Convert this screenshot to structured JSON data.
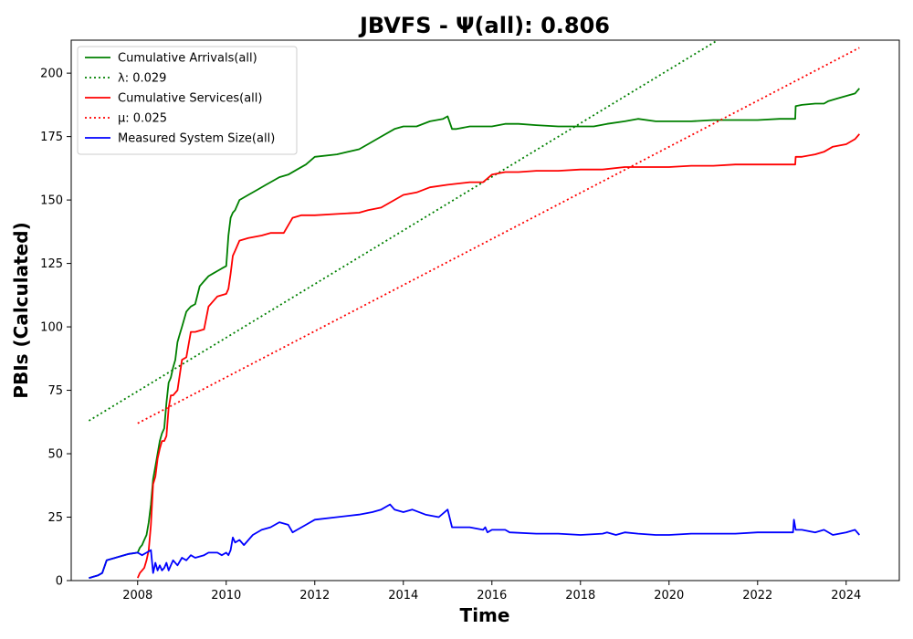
{
  "chart_data": {
    "type": "line",
    "title": "JBVFS -  Ψ(all): 0.806",
    "xlabel": "Time",
    "ylabel": "PBIs (Calculated)",
    "xlim": [
      2006.5,
      2025.2
    ],
    "ylim": [
      0,
      213
    ],
    "xticks": [
      2008,
      2010,
      2012,
      2014,
      2016,
      2018,
      2020,
      2022,
      2024
    ],
    "yticks": [
      0,
      25,
      50,
      75,
      100,
      125,
      150,
      175,
      200
    ],
    "grid": false,
    "legend_position": "top-left",
    "series": [
      {
        "name": "Cumulative Arrivals(all)",
        "color": "#008000",
        "style": "solid",
        "x": [
          2006.9,
          2007.0,
          2007.1,
          2007.2,
          2007.3,
          2007.5,
          2007.8,
          2008.0,
          2008.05,
          2008.1,
          2008.15,
          2008.2,
          2008.25,
          2008.3,
          2008.35,
          2008.4,
          2008.45,
          2008.5,
          2008.55,
          2008.6,
          2008.65,
          2008.7,
          2008.75,
          2008.8,
          2008.85,
          2008.9,
          2008.95,
          2009.0,
          2009.05,
          2009.1,
          2009.15,
          2009.2,
          2009.3,
          2009.4,
          2009.5,
          2009.6,
          2009.7,
          2009.8,
          2009.9,
          2010.0,
          2010.05,
          2010.1,
          2010.15,
          2010.2,
          2010.3,
          2010.5,
          2010.7,
          2010.9,
          2011.0,
          2011.2,
          2011.4,
          2011.6,
          2011.8,
          2012.0,
          2012.5,
          2013.0,
          2013.2,
          2013.5,
          2013.8,
          2014.0,
          2014.3,
          2014.6,
          2014.9,
          2015.0,
          2015.1,
          2015.2,
          2015.5,
          2015.8,
          2016.0,
          2016.3,
          2016.6,
          2017.0,
          2017.5,
          2018.0,
          2018.3,
          2018.6,
          2019.0,
          2019.3,
          2019.7,
          2020.0,
          2020.5,
          2021.0,
          2021.5,
          2022.0,
          2022.5,
          2022.85,
          2022.86,
          2023.0,
          2023.3,
          2023.5,
          2023.6,
          2023.8,
          2024.0,
          2024.2,
          2024.3
        ],
        "values": [
          1,
          1.5,
          2,
          3,
          8,
          9,
          10.5,
          11,
          13,
          14,
          16,
          18,
          23,
          30,
          40,
          45,
          50,
          55,
          58,
          60,
          70,
          78,
          80,
          84,
          87,
          94,
          97,
          100,
          103,
          106,
          107,
          108,
          109,
          116,
          118,
          120,
          121,
          122,
          123,
          124,
          136,
          143,
          145,
          146,
          150,
          152,
          154,
          156,
          157,
          159,
          160,
          162,
          164,
          167,
          168,
          170,
          172,
          175,
          178,
          179,
          179,
          181,
          182,
          183,
          178,
          178,
          179,
          179,
          179,
          180,
          180,
          179.5,
          179,
          179,
          179,
          180,
          181,
          182,
          181,
          181,
          181,
          181.5,
          181.5,
          181.5,
          182,
          182,
          187,
          187.5,
          188,
          188,
          189,
          190,
          191,
          192,
          194
        ]
      },
      {
        "name": "λ: 0.029",
        "color": "#008000",
        "style": "dotted",
        "x": [
          2006.9,
          2021.1
        ],
        "values": [
          63,
          213
        ]
      },
      {
        "name": "Cumulative Services(all)",
        "color": "#ff0000",
        "style": "solid",
        "x": [
          2008.0,
          2008.05,
          2008.1,
          2008.15,
          2008.2,
          2008.25,
          2008.3,
          2008.35,
          2008.4,
          2008.45,
          2008.5,
          2008.55,
          2008.6,
          2008.65,
          2008.7,
          2008.75,
          2008.8,
          2008.9,
          2009.0,
          2009.1,
          2009.2,
          2009.3,
          2009.5,
          2009.6,
          2009.8,
          2010.0,
          2010.05,
          2010.1,
          2010.15,
          2010.2,
          2010.3,
          2010.5,
          2010.8,
          2011.0,
          2011.3,
          2011.5,
          2011.7,
          2012.0,
          2012.5,
          2013.0,
          2013.2,
          2013.5,
          2014.0,
          2014.3,
          2014.6,
          2015.0,
          2015.5,
          2015.8,
          2016.0,
          2016.3,
          2016.6,
          2017.0,
          2017.5,
          2018.0,
          2018.5,
          2019.0,
          2019.5,
          2020.0,
          2020.5,
          2021.0,
          2021.5,
          2022.0,
          2022.5,
          2022.85,
          2022.86,
          2023.0,
          2023.3,
          2023.5,
          2023.7,
          2024.0,
          2024.2,
          2024.3
        ],
        "values": [
          1,
          3,
          4,
          5,
          8,
          12,
          22,
          38,
          41,
          48,
          52,
          55,
          55,
          57,
          68,
          73,
          73,
          75,
          87,
          88,
          98,
          98,
          99,
          108,
          112,
          113,
          115,
          121,
          128,
          130,
          134,
          135,
          136,
          137,
          137,
          143,
          144,
          144,
          144.5,
          145,
          146,
          147,
          152,
          153,
          155,
          156,
          157,
          157,
          160,
          161,
          161,
          161.5,
          161.5,
          162,
          162,
          163,
          163,
          163,
          163.5,
          163.5,
          164,
          164,
          164,
          164,
          167,
          167,
          168,
          169,
          171,
          172,
          174,
          176
        ]
      },
      {
        "name": "μ: 0.025",
        "color": "#ff0000",
        "style": "dotted",
        "x": [
          2008.0,
          2024.3
        ],
        "values": [
          62,
          210
        ]
      },
      {
        "name": "Measured System Size(all)",
        "color": "#0000ff",
        "style": "solid",
        "x": [
          2006.9,
          2007.0,
          2007.1,
          2007.2,
          2007.3,
          2007.5,
          2007.8,
          2008.0,
          2008.1,
          2008.2,
          2008.3,
          2008.35,
          2008.4,
          2008.45,
          2008.5,
          2008.55,
          2008.6,
          2008.65,
          2008.7,
          2008.75,
          2008.8,
          2008.9,
          2009.0,
          2009.1,
          2009.2,
          2009.3,
          2009.5,
          2009.6,
          2009.8,
          2009.9,
          2010.0,
          2010.05,
          2010.1,
          2010.15,
          2010.2,
          2010.3,
          2010.4,
          2010.6,
          2010.8,
          2011.0,
          2011.2,
          2011.4,
          2011.5,
          2011.6,
          2011.8,
          2012.0,
          2012.5,
          2013.0,
          2013.3,
          2013.5,
          2013.7,
          2013.8,
          2014.0,
          2014.2,
          2014.5,
          2014.8,
          2015.0,
          2015.1,
          2015.5,
          2015.8,
          2015.85,
          2015.9,
          2016.0,
          2016.3,
          2016.4,
          2017.0,
          2017.5,
          2018.0,
          2018.5,
          2018.6,
          2018.8,
          2019.0,
          2019.3,
          2019.7,
          2020.0,
          2020.5,
          2021.0,
          2021.5,
          2022.0,
          2022.5,
          2022.8,
          2022.82,
          2022.86,
          2023.0,
          2023.3,
          2023.5,
          2023.7,
          2024.0,
          2024.2,
          2024.3
        ],
        "values": [
          1,
          1.5,
          2,
          3,
          8,
          9,
          10.5,
          11,
          10,
          11,
          12,
          3,
          7,
          4,
          6,
          4,
          5,
          7,
          4,
          6,
          8,
          6,
          9,
          8,
          10,
          9,
          10,
          11,
          11,
          10,
          11,
          10,
          12,
          17,
          15,
          16,
          14,
          18,
          20,
          21,
          23,
          22,
          19,
          20,
          22,
          24,
          25,
          26,
          27,
          28,
          30,
          28,
          27,
          28,
          26,
          25,
          28,
          21,
          21,
          20,
          21,
          19,
          20,
          20,
          19,
          18.5,
          18.5,
          18,
          18.5,
          19,
          18,
          19,
          18.5,
          18,
          18,
          18.5,
          18.5,
          18.5,
          19,
          19,
          19,
          24,
          20,
          20,
          19,
          20,
          18,
          19,
          20,
          18
        ]
      }
    ]
  }
}
